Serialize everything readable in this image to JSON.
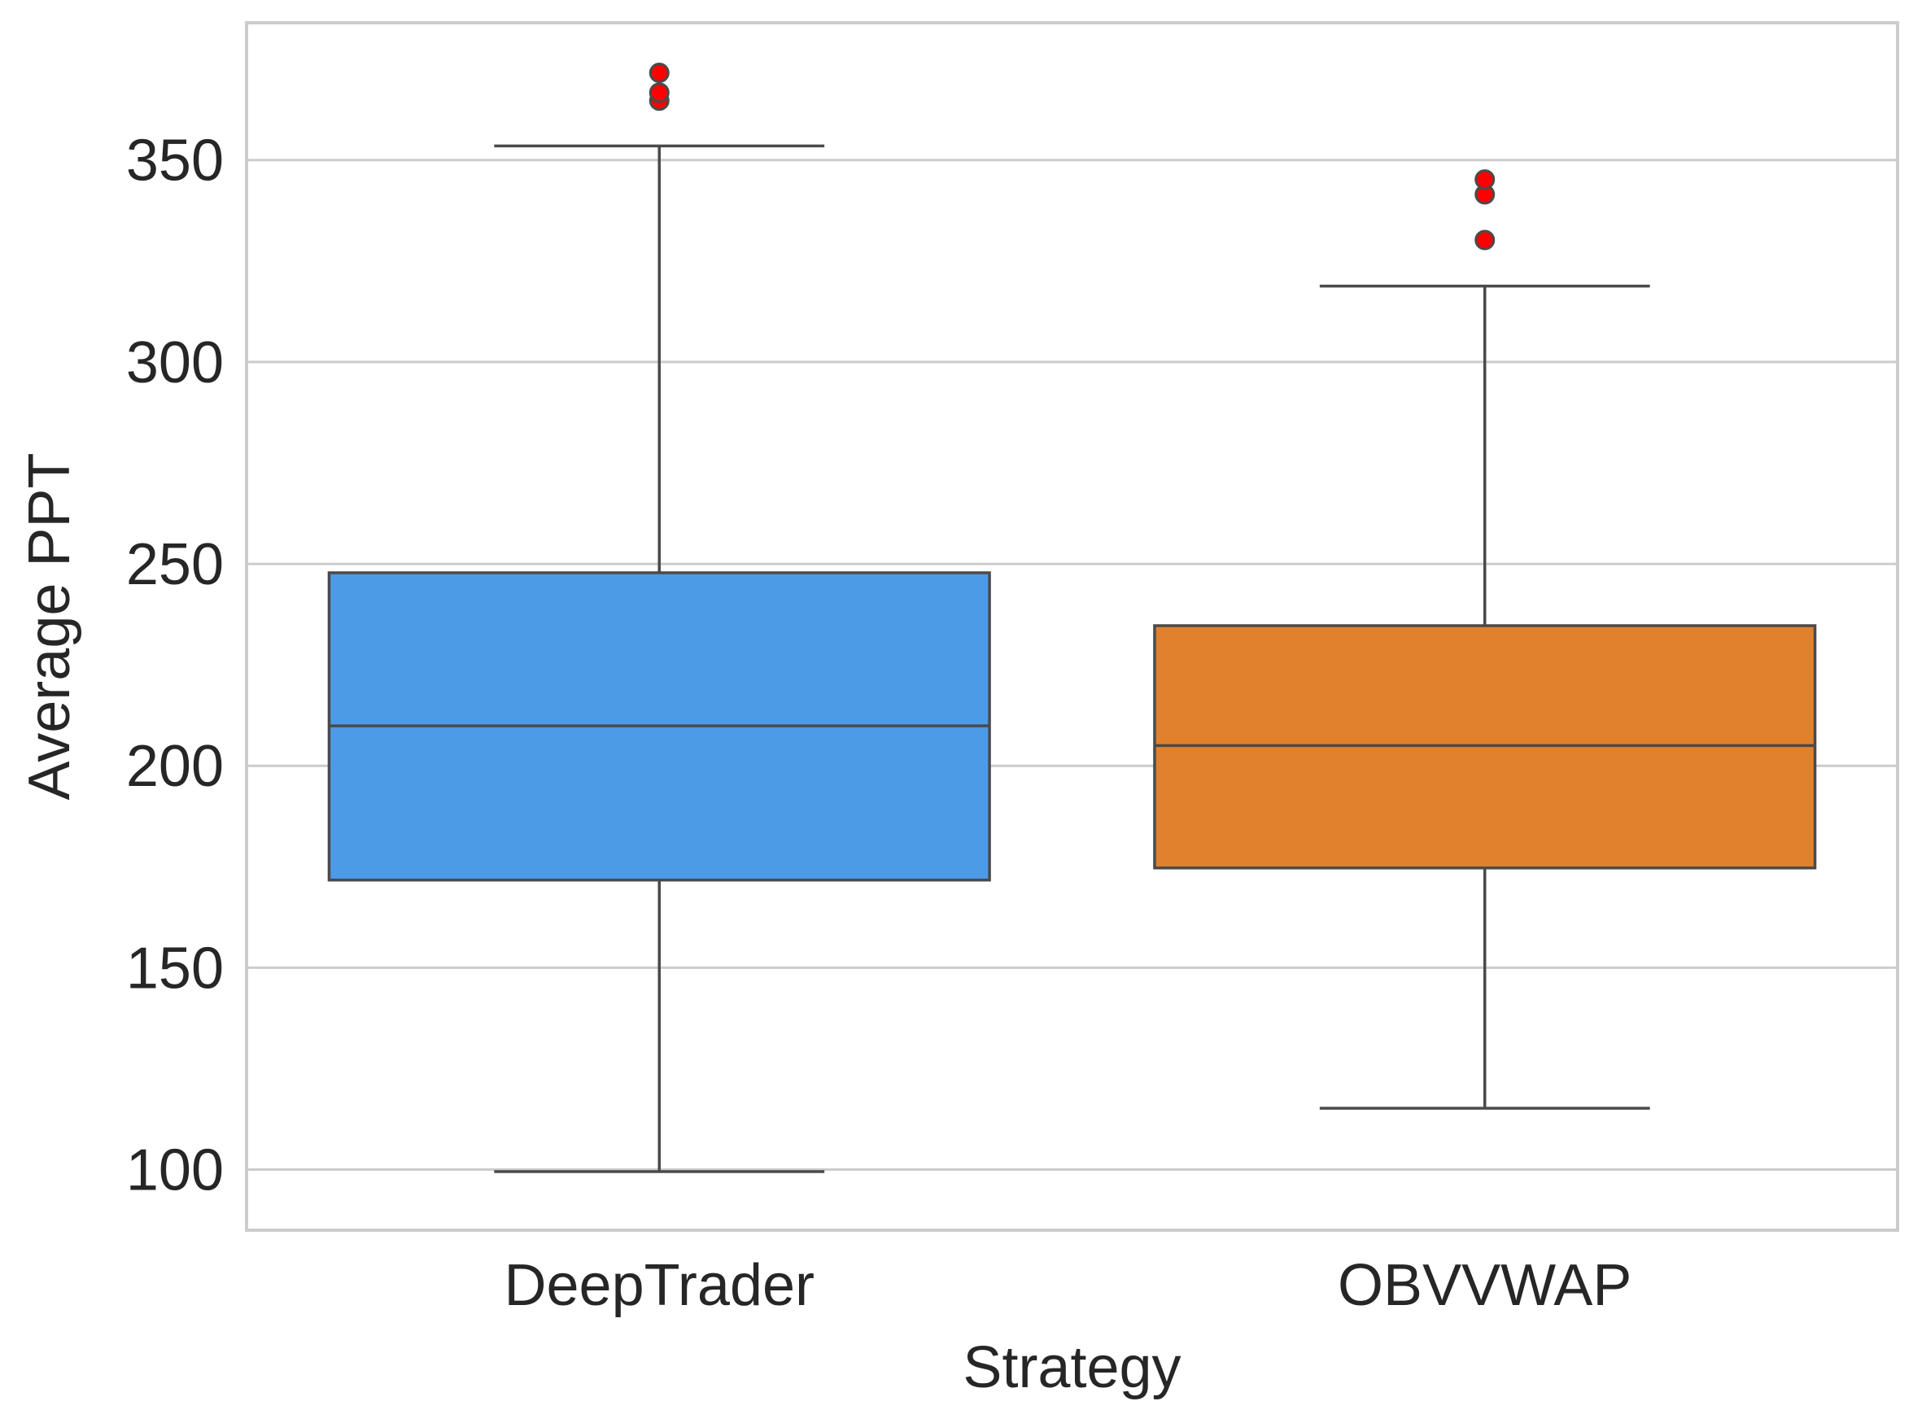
{
  "chart_data": {
    "type": "box",
    "title": "",
    "xlabel": "Strategy",
    "ylabel": "Average PPT",
    "categories": [
      "DeepTrader",
      "OBVVWAP"
    ],
    "ylim": [
      85,
      384
    ],
    "yticks": [
      100,
      150,
      200,
      250,
      300,
      350
    ],
    "grid": "horizontal",
    "boxes": [
      {
        "category": "DeepTrader",
        "color": "#4C9BE6",
        "whisker_low": 99.5,
        "q1": 171.7,
        "median": 209.9,
        "q3": 247.8,
        "whisker_high": 353.5,
        "outliers": [
          364.7,
          366.7,
          371.6
        ]
      },
      {
        "category": "OBVVWAP",
        "color": "#E1812C",
        "whisker_low": 115.2,
        "q1": 174.7,
        "median": 205.0,
        "q3": 234.7,
        "whisker_high": 318.8,
        "outliers": [
          330.2,
          341.5,
          345.2
        ]
      }
    ],
    "outlier_color": "#FF0000"
  }
}
